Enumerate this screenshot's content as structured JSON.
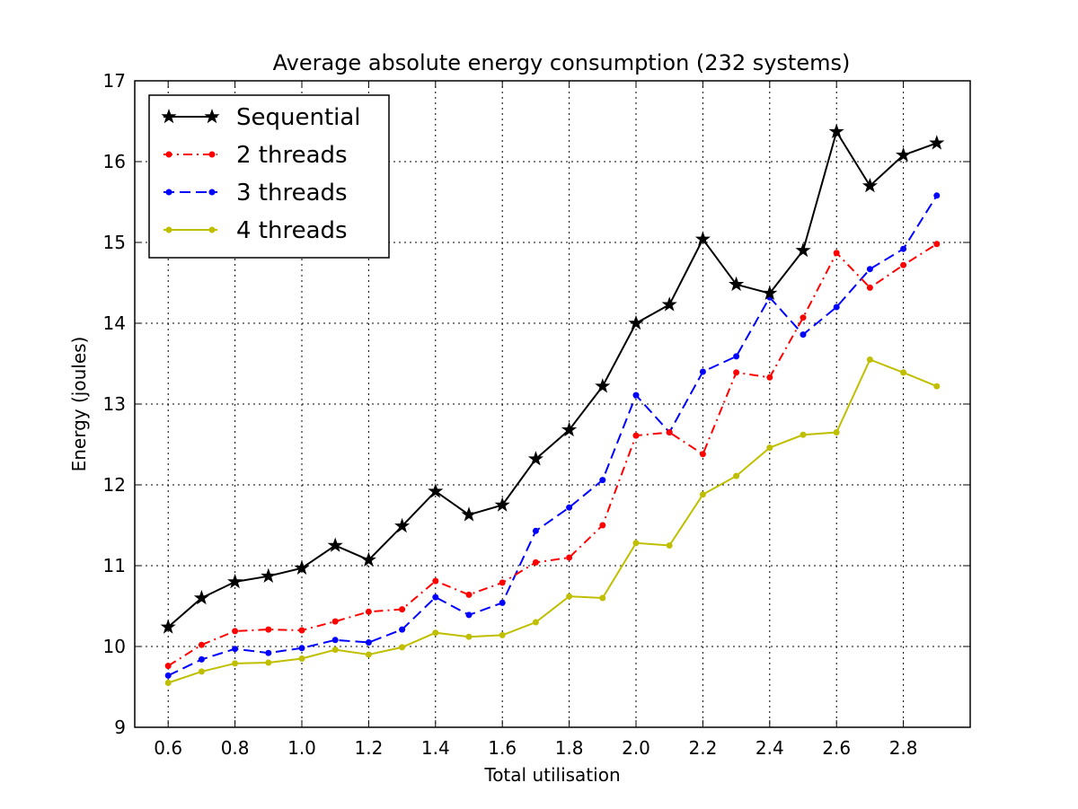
{
  "chart_data": {
    "type": "line",
    "title": "Average absolute energy consumption (232 systems)",
    "xlabel": "Total utilisation",
    "ylabel": "Energy (joules)",
    "xlim": [
      0.5,
      3.0
    ],
    "ylim": [
      9,
      17
    ],
    "xticks": [
      "0.6",
      "0.8",
      "1.0",
      "1.2",
      "1.4",
      "1.6",
      "1.8",
      "2.0",
      "2.2",
      "2.4",
      "2.6",
      "2.8"
    ],
    "yticks": [
      "9",
      "10",
      "11",
      "12",
      "13",
      "14",
      "15",
      "16",
      "17"
    ],
    "grid": true,
    "legend_position": "top-left",
    "x": [
      0.6,
      0.7,
      0.8,
      0.9,
      1.0,
      1.1,
      1.2,
      1.3,
      1.4,
      1.5,
      1.6,
      1.7,
      1.8,
      1.9,
      2.0,
      2.1,
      2.2,
      2.3,
      2.4,
      2.5,
      2.6,
      2.7,
      2.8,
      2.9
    ],
    "series": [
      {
        "name": "Sequential",
        "color": "#000000",
        "style": "solid",
        "marker": "star",
        "values": [
          10.24,
          10.6,
          10.8,
          10.87,
          10.97,
          11.25,
          11.07,
          11.49,
          11.92,
          11.63,
          11.75,
          12.32,
          12.68,
          13.22,
          14.0,
          14.23,
          15.04,
          14.48,
          14.37,
          14.9,
          16.37,
          15.7,
          16.08,
          16.23
        ]
      },
      {
        "name": "2 threads",
        "color": "#ff0000",
        "style": "dashdot",
        "marker": "dot",
        "values": [
          9.76,
          10.02,
          10.19,
          10.21,
          10.2,
          10.31,
          10.43,
          10.46,
          10.81,
          10.64,
          10.79,
          11.04,
          11.1,
          11.5,
          12.61,
          12.65,
          12.38,
          13.39,
          13.33,
          14.07,
          14.87,
          14.44,
          14.72,
          14.98
        ]
      },
      {
        "name": "3 threads",
        "color": "#0000ff",
        "style": "dashed",
        "marker": "dot",
        "values": [
          9.64,
          9.84,
          9.97,
          9.92,
          9.98,
          10.08,
          10.05,
          10.21,
          10.61,
          10.39,
          10.54,
          11.43,
          11.72,
          12.06,
          13.11,
          12.65,
          13.4,
          13.59,
          14.32,
          13.86,
          14.2,
          14.67,
          14.92,
          15.58
        ]
      },
      {
        "name": "4 threads",
        "color": "#bfbf00",
        "style": "solid",
        "marker": "dot",
        "values": [
          9.55,
          9.69,
          9.79,
          9.8,
          9.85,
          9.96,
          9.9,
          9.99,
          10.17,
          10.12,
          10.14,
          10.3,
          10.62,
          10.6,
          11.28,
          11.25,
          11.88,
          12.11,
          12.46,
          12.62,
          12.65,
          13.55,
          13.39,
          13.22
        ]
      }
    ]
  }
}
